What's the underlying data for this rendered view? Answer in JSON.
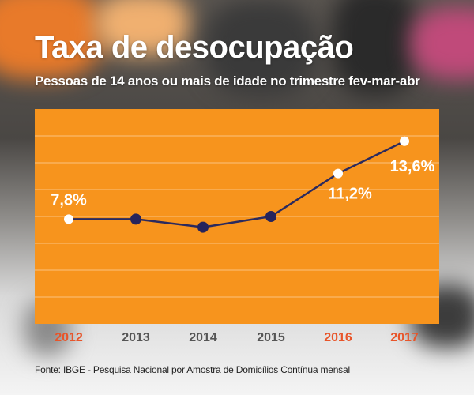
{
  "header": {
    "title": "Taxa de desocupação",
    "subtitle": "Pessoas de 14 anos ou mais de idade no trimestre fev-mar-abr"
  },
  "footer": {
    "source": "Fonte: IBGE - Pesquisa Nacional por Amostra de Domicílios Contínua mensal"
  },
  "colors": {
    "panel": "#f7941d",
    "line": "#2b2a5e",
    "marker_dark": "#26245c",
    "marker_light": "#ffffff",
    "highlight_label": "#e8552a",
    "normal_label": "#555555"
  },
  "chart_data": {
    "type": "line",
    "title": "Taxa de desocupação",
    "categories": [
      "2012",
      "2013",
      "2014",
      "2015",
      "2016",
      "2017"
    ],
    "series": [
      {
        "values": [
          7.8,
          7.8,
          7.2,
          8.0,
          11.2,
          13.6
        ]
      }
    ],
    "data_labels": [
      "7,8%",
      "",
      "",
      "",
      "11,2%",
      "13,6%"
    ],
    "highlighted_categories": [
      "2012",
      "2016",
      "2017"
    ],
    "ylim": [
      0,
      16
    ],
    "grid": true
  }
}
